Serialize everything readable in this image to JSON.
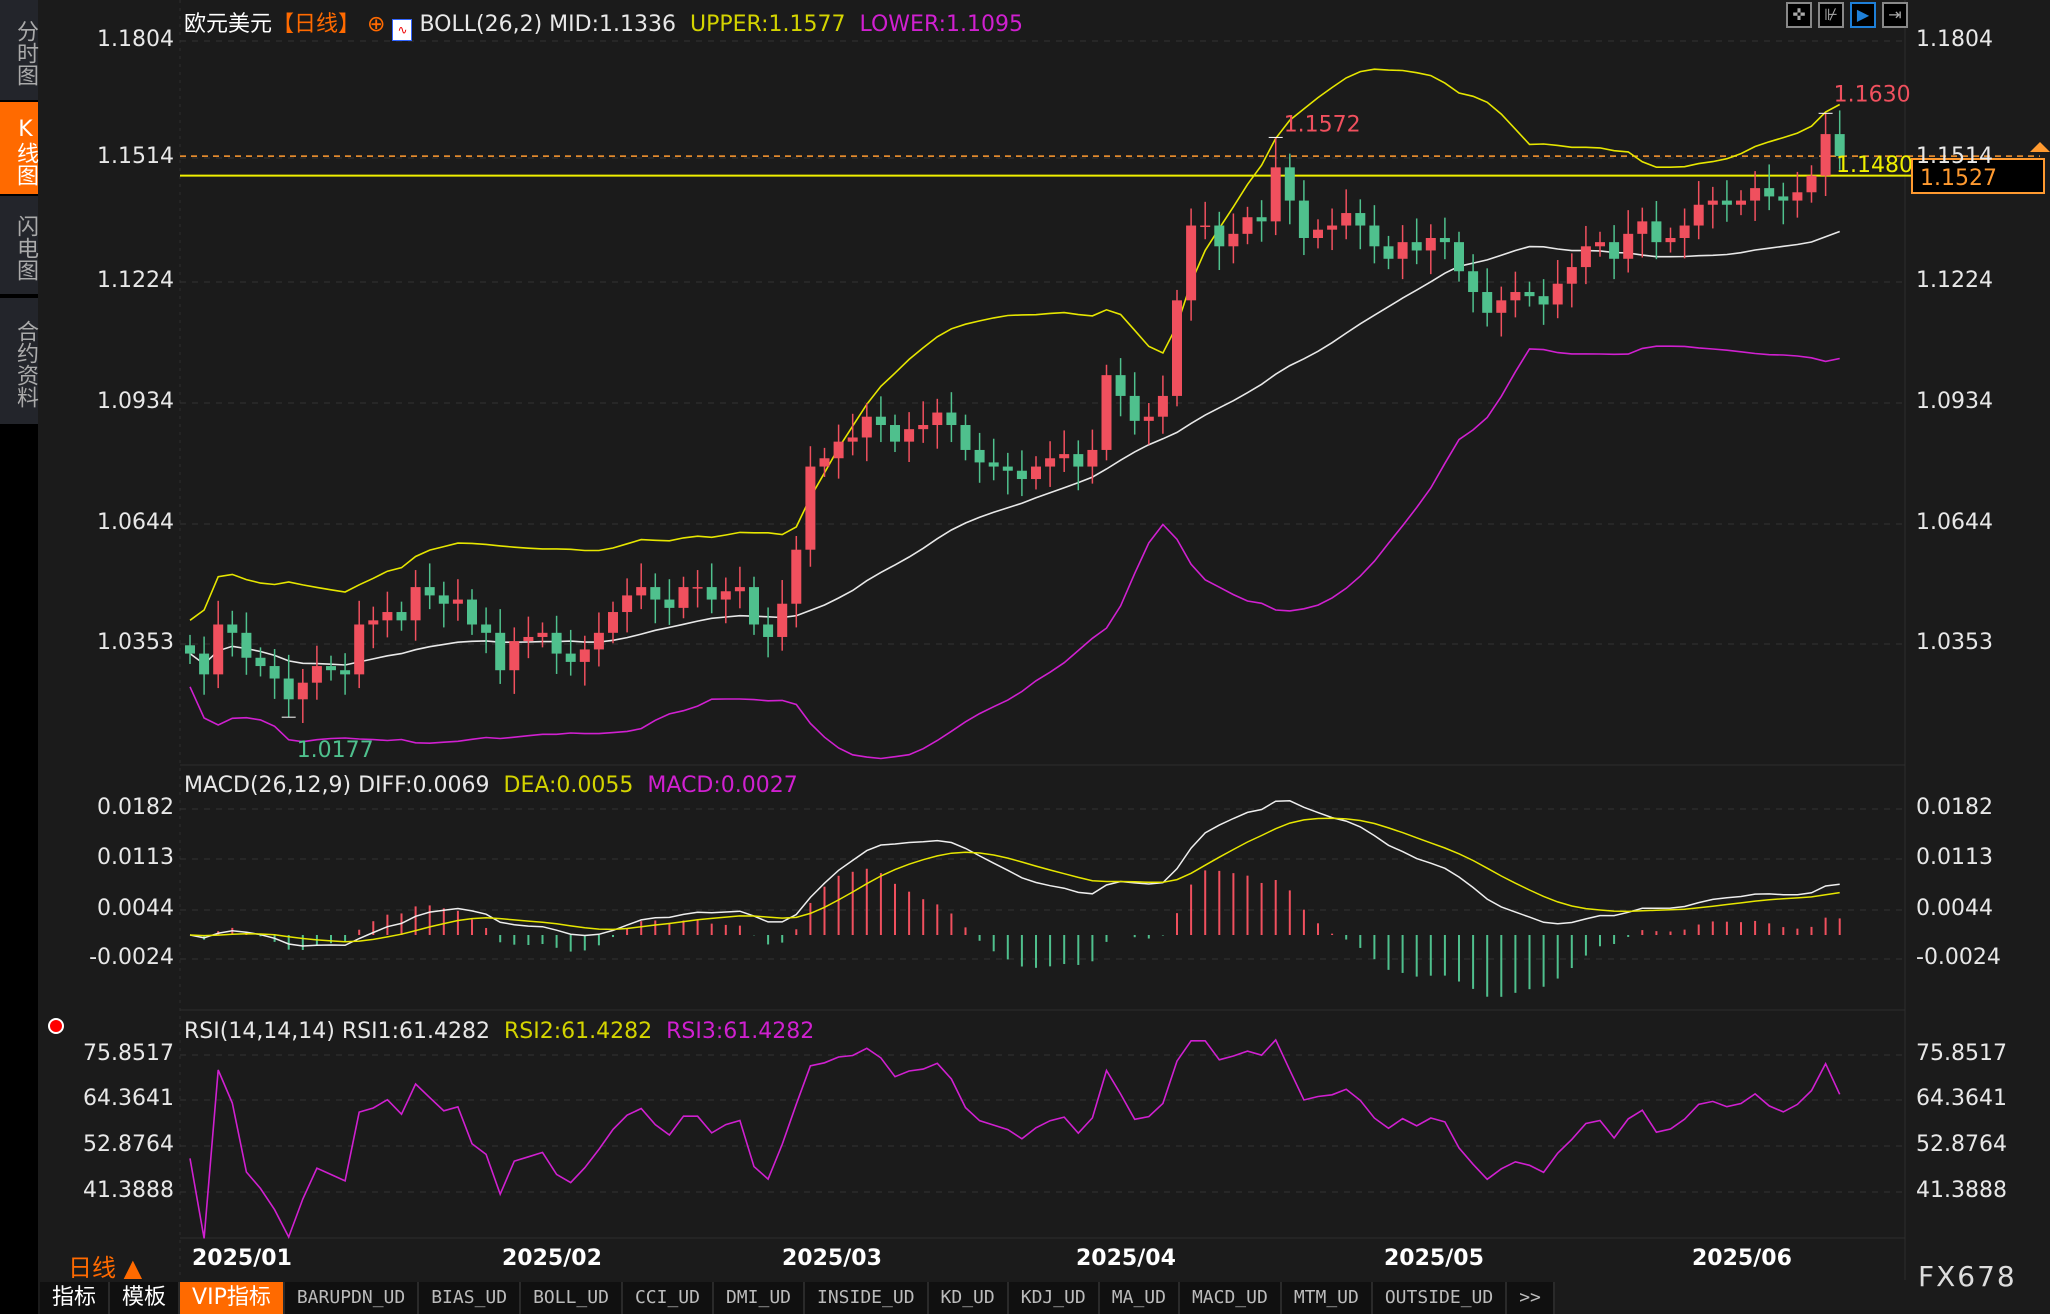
{
  "sidebar": {
    "items": [
      {
        "label": "分时图",
        "active": false
      },
      {
        "label": "K线图",
        "active": true
      },
      {
        "label": "闪电图",
        "active": false
      },
      {
        "label": "合约资料",
        "active": false
      }
    ]
  },
  "header": {
    "symbol": "欧元美元",
    "period": "【日线】",
    "boll": {
      "label": "BOLL(26,2)",
      "mid": "MID:1.1336",
      "upper": "UPPER:1.1577",
      "lower": "LOWER:1.1095"
    }
  },
  "macd": {
    "label": "MACD(26,12,9)",
    "diff": "DIFF:0.0069",
    "dea": "DEA:0.0055",
    "macd": "MACD:0.0027"
  },
  "rsi": {
    "label": "RSI(14,14,14)",
    "rsi1": "RSI1:61.4282",
    "rsi2": "RSI2:61.4282",
    "rsi3": "RSI3:61.4282"
  },
  "price_ticks": [
    "1.1804",
    "1.1514",
    "1.1224",
    "1.0934",
    "1.0644",
    "1.0353"
  ],
  "macd_ticks": [
    "0.0182",
    "0.0113",
    "0.0044",
    "-0.0024"
  ],
  "rsi_ticks": [
    "75.8517",
    "64.3641",
    "52.8764",
    "41.3888"
  ],
  "months": [
    "2025/01",
    "2025/02",
    "2025/03",
    "2025/04",
    "2025/05",
    "2025/06"
  ],
  "period_label": "日线 ▲",
  "brand": "FX678",
  "annotations": {
    "high_label": "1.1630",
    "mid_high_label": "1.1572",
    "low_label": "1.0177",
    "line_label": "1.1480",
    "current_price": "1.1527"
  },
  "toolbar_icons": [
    "crosshair-icon",
    "range-icon",
    "play-chart-icon",
    "move-right-icon"
  ],
  "tabs": [
    "指标",
    "模板",
    "VIP指标",
    "BARUPDN_UD",
    "BIAS_UD",
    "BOLL_UD",
    "CCI_UD",
    "DMI_UD",
    "INSIDE_UD",
    "KD_UD",
    "KDJ_UD",
    "MA_UD",
    "MACD_UD",
    "MTM_UD",
    "OUTSIDE_UD",
    ">>"
  ],
  "active_tab": "VIP指标",
  "colors": {
    "up": "#f0505e",
    "down": "#4fc08d",
    "boll_mid": "#e8e8e8",
    "boll_upper": "#e6e600",
    "boll_lower": "#d020d0",
    "accent": "#ff6a00"
  },
  "chart_data": {
    "type": "candlestick",
    "ylim": [
      1.0081,
      1.1804
    ],
    "close": [
      1.033,
      1.028,
      1.04,
      1.038,
      1.032,
      1.03,
      1.027,
      1.022,
      1.026,
      1.03,
      1.029,
      1.028,
      1.04,
      1.041,
      1.043,
      1.041,
      1.049,
      1.047,
      1.045,
      1.046,
      1.04,
      1.038,
      1.029,
      1.036,
      1.037,
      1.038,
      1.033,
      1.031,
      1.034,
      1.038,
      1.043,
      1.047,
      1.049,
      1.046,
      1.044,
      1.049,
      1.049,
      1.046,
      1.048,
      1.049,
      1.04,
      1.037,
      1.045,
      1.058,
      1.078,
      1.08,
      1.084,
      1.085,
      1.09,
      1.088,
      1.084,
      1.087,
      1.088,
      1.091,
      1.088,
      1.082,
      1.079,
      1.078,
      1.077,
      1.075,
      1.078,
      1.08,
      1.081,
      1.078,
      1.082,
      1.1,
      1.095,
      1.089,
      1.09,
      1.095,
      1.118,
      1.136,
      1.136,
      1.131,
      1.134,
      1.138,
      1.137,
      1.15,
      1.142,
      1.133,
      1.135,
      1.136,
      1.139,
      1.136,
      1.131,
      1.128,
      1.132,
      1.13,
      1.133,
      1.132,
      1.125,
      1.12,
      1.115,
      1.118,
      1.12,
      1.119,
      1.117,
      1.122,
      1.126,
      1.131,
      1.132,
      1.128,
      1.134,
      1.137,
      1.132,
      1.133,
      1.136,
      1.141,
      1.142,
      1.141,
      1.142,
      1.145,
      1.143,
      1.142,
      1.144,
      1.148,
      1.158,
      1.1527
    ],
    "max_high": 1.163,
    "local_high": 1.1572,
    "min_low": 1.0177,
    "hlines": [
      {
        "value": 1.148,
        "style": "solid"
      },
      {
        "value": 1.1527,
        "style": "dashed"
      }
    ],
    "x_tick_labels": [
      "2025/01",
      "2025/02",
      "2025/03",
      "2025/04",
      "2025/05",
      "2025/06"
    ],
    "indicators": [
      "BOLL(26,2)",
      "MACD(26,12,9)",
      "RSI(14,14,14)"
    ]
  }
}
